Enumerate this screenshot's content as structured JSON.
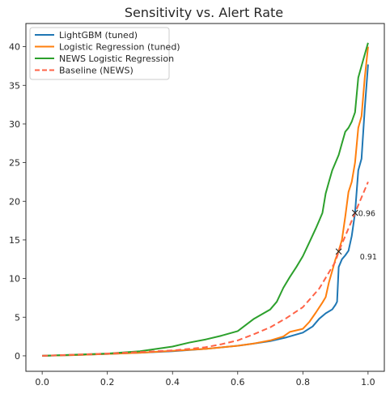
{
  "chart_data": {
    "type": "line",
    "title": "Sensitivity vs. Alert Rate",
    "xlabel": "",
    "ylabel": "",
    "xlim": [
      -0.05,
      1.05
    ],
    "ylim": [
      -2,
      43
    ],
    "xticks": [
      0.0,
      0.2,
      0.4,
      0.6,
      0.8,
      1.0
    ],
    "xtick_labels": [
      "0.0",
      "0.2",
      "0.4",
      "0.6",
      "0.8",
      "1.0"
    ],
    "yticks": [
      0,
      5,
      10,
      15,
      20,
      25,
      30,
      35,
      40
    ],
    "ytick_labels": [
      "0",
      "5",
      "10",
      "15",
      "20",
      "25",
      "30",
      "35",
      "40"
    ],
    "grid": false,
    "legend_position": "upper-left",
    "series": [
      {
        "name": "LightGBM (tuned)",
        "color": "#1f77b4",
        "style": "solid",
        "points": [
          [
            0.0,
            0.0
          ],
          [
            0.1,
            0.1
          ],
          [
            0.2,
            0.25
          ],
          [
            0.3,
            0.4
          ],
          [
            0.4,
            0.6
          ],
          [
            0.5,
            0.9
          ],
          [
            0.6,
            1.3
          ],
          [
            0.65,
            1.6
          ],
          [
            0.7,
            1.9
          ],
          [
            0.75,
            2.4
          ],
          [
            0.8,
            3.0
          ],
          [
            0.83,
            3.8
          ],
          [
            0.85,
            4.8
          ],
          [
            0.87,
            5.5
          ],
          [
            0.89,
            6.0
          ],
          [
            0.9,
            6.6
          ],
          [
            0.905,
            7.0
          ],
          [
            0.91,
            11.5
          ],
          [
            0.92,
            12.5
          ],
          [
            0.93,
            13.0
          ],
          [
            0.94,
            13.6
          ],
          [
            0.95,
            15.5
          ],
          [
            0.96,
            18.5
          ],
          [
            0.97,
            24.0
          ],
          [
            0.98,
            25.5
          ],
          [
            0.99,
            32.0
          ],
          [
            1.0,
            37.7
          ]
        ]
      },
      {
        "name": "Logistic Regression (tuned)",
        "color": "#ff7f0e",
        "style": "solid",
        "points": [
          [
            0.0,
            0.0
          ],
          [
            0.1,
            0.1
          ],
          [
            0.2,
            0.25
          ],
          [
            0.3,
            0.4
          ],
          [
            0.4,
            0.65
          ],
          [
            0.5,
            0.9
          ],
          [
            0.6,
            1.3
          ],
          [
            0.65,
            1.6
          ],
          [
            0.7,
            2.0
          ],
          [
            0.74,
            2.5
          ],
          [
            0.76,
            3.1
          ],
          [
            0.8,
            3.5
          ],
          [
            0.82,
            4.4
          ],
          [
            0.84,
            5.6
          ],
          [
            0.86,
            6.9
          ],
          [
            0.87,
            7.6
          ],
          [
            0.88,
            9.5
          ],
          [
            0.89,
            11.0
          ],
          [
            0.9,
            12.5
          ],
          [
            0.91,
            13.6
          ],
          [
            0.92,
            15.0
          ],
          [
            0.93,
            18.0
          ],
          [
            0.94,
            21.2
          ],
          [
            0.95,
            22.5
          ],
          [
            0.96,
            25.0
          ],
          [
            0.97,
            29.5
          ],
          [
            0.98,
            31.0
          ],
          [
            0.99,
            36.0
          ],
          [
            1.0,
            40.0
          ]
        ]
      },
      {
        "name": "NEWS Logistic Regression",
        "color": "#2ca02c",
        "style": "solid",
        "points": [
          [
            0.0,
            0.0
          ],
          [
            0.1,
            0.15
          ],
          [
            0.2,
            0.3
          ],
          [
            0.3,
            0.6
          ],
          [
            0.4,
            1.2
          ],
          [
            0.45,
            1.7
          ],
          [
            0.5,
            2.1
          ],
          [
            0.55,
            2.6
          ],
          [
            0.6,
            3.2
          ],
          [
            0.65,
            4.8
          ],
          [
            0.7,
            6.0
          ],
          [
            0.72,
            7.0
          ],
          [
            0.74,
            8.8
          ],
          [
            0.76,
            10.2
          ],
          [
            0.78,
            11.5
          ],
          [
            0.8,
            12.9
          ],
          [
            0.82,
            14.7
          ],
          [
            0.84,
            16.5
          ],
          [
            0.85,
            17.5
          ],
          [
            0.86,
            18.5
          ],
          [
            0.87,
            21.0
          ],
          [
            0.88,
            22.5
          ],
          [
            0.89,
            24.0
          ],
          [
            0.9,
            25.0
          ],
          [
            0.91,
            26.0
          ],
          [
            0.92,
            27.5
          ],
          [
            0.93,
            29.0
          ],
          [
            0.94,
            29.5
          ],
          [
            0.95,
            30.3
          ],
          [
            0.96,
            31.5
          ],
          [
            0.97,
            36.0
          ],
          [
            0.98,
            37.5
          ],
          [
            0.99,
            39.0
          ],
          [
            1.0,
            40.5
          ]
        ]
      },
      {
        "name": "Baseline (NEWS)",
        "color": "#ff6347",
        "style": "dashed",
        "points": [
          [
            0.0,
            0.0
          ],
          [
            0.1,
            0.15
          ],
          [
            0.2,
            0.3
          ],
          [
            0.3,
            0.5
          ],
          [
            0.4,
            0.7
          ],
          [
            0.5,
            1.1
          ],
          [
            0.55,
            1.5
          ],
          [
            0.6,
            2.0
          ],
          [
            0.65,
            2.8
          ],
          [
            0.7,
            3.7
          ],
          [
            0.75,
            4.9
          ],
          [
            0.8,
            6.3
          ],
          [
            0.85,
            8.7
          ],
          [
            0.9,
            12.2
          ],
          [
            0.91,
            13.5
          ],
          [
            0.93,
            15.5
          ],
          [
            0.96,
            18.5
          ],
          [
            0.98,
            20.5
          ],
          [
            1.0,
            22.5
          ]
        ]
      }
    ],
    "annotations": [
      {
        "text": "0.96",
        "x": 0.96,
        "y": 18.5
      },
      {
        "text": "0.91",
        "x": 0.91,
        "y": 13.5
      }
    ]
  }
}
